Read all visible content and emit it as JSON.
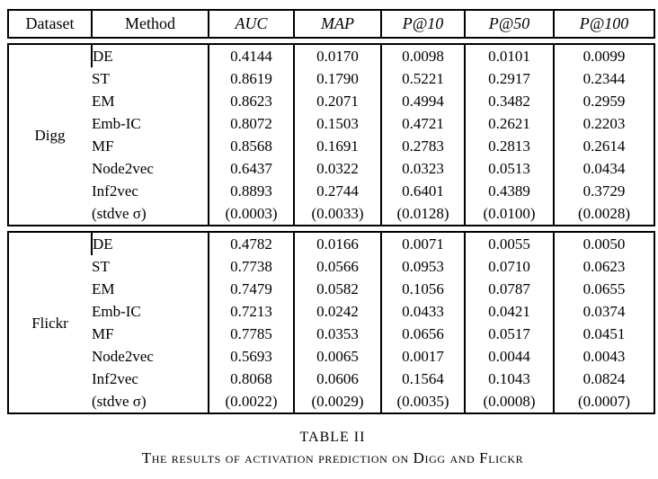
{
  "caption": {
    "label": "TABLE II",
    "title": "The results of activation prediction on Digg and Flickr"
  },
  "table": {
    "headers": [
      {
        "label": "Dataset",
        "italic": false,
        "align": "center"
      },
      {
        "label": "Method",
        "italic": false,
        "align": "left"
      },
      {
        "label": "AUC",
        "italic": true,
        "align": "center"
      },
      {
        "label": "MAP",
        "italic": true,
        "align": "center"
      },
      {
        "label": "P@10",
        "italic": true,
        "align": "center"
      },
      {
        "label": "P@50",
        "italic": true,
        "align": "center"
      },
      {
        "label": "P@100",
        "italic": true,
        "align": "center"
      }
    ],
    "groups": [
      {
        "dataset": "Digg",
        "rows": [
          {
            "method": "DE",
            "bold": false,
            "values": [
              "0.4144",
              "0.0170",
              "0.0098",
              "0.0101",
              "0.0099"
            ]
          },
          {
            "method": "ST",
            "bold": false,
            "values": [
              "0.8619",
              "0.1790",
              "0.5221",
              "0.2917",
              "0.2344"
            ]
          },
          {
            "method": "EM",
            "bold": false,
            "values": [
              "0.8623",
              "0.2071",
              "0.4994",
              "0.3482",
              "0.2959"
            ]
          },
          {
            "method": "Emb-IC",
            "bold": false,
            "values": [
              "0.8072",
              "0.1503",
              "0.4721",
              "0.2621",
              "0.2203"
            ]
          },
          {
            "method": "MF",
            "bold": false,
            "values": [
              "0.8568",
              "0.1691",
              "0.2783",
              "0.2813",
              "0.2614"
            ]
          },
          {
            "method": "Node2vec",
            "bold": false,
            "values": [
              "0.6437",
              "0.0322",
              "0.0323",
              "0.0513",
              "0.0434"
            ]
          },
          {
            "method": "Inf2vec",
            "bold": true,
            "values": [
              "0.8893",
              "0.2744",
              "0.6401",
              "0.4389",
              "0.3729"
            ]
          },
          {
            "method": "(stdve σ)",
            "bold": false,
            "values": [
              "(0.0003)",
              "(0.0033)",
              "(0.0128)",
              "(0.0100)",
              "(0.0028)"
            ]
          }
        ]
      },
      {
        "dataset": "Flickr",
        "rows": [
          {
            "method": "DE",
            "bold": false,
            "values": [
              "0.4782",
              "0.0166",
              "0.0071",
              "0.0055",
              "0.0050"
            ]
          },
          {
            "method": "ST",
            "bold": false,
            "values": [
              "0.7738",
              "0.0566",
              "0.0953",
              "0.0710",
              "0.0623"
            ]
          },
          {
            "method": "EM",
            "bold": false,
            "values": [
              "0.7479",
              "0.0582",
              "0.1056",
              "0.0787",
              "0.0655"
            ]
          },
          {
            "method": "Emb-IC",
            "bold": false,
            "values": [
              "0.7213",
              "0.0242",
              "0.0433",
              "0.0421",
              "0.0374"
            ]
          },
          {
            "method": "MF",
            "bold": false,
            "values": [
              "0.7785",
              "0.0353",
              "0.0656",
              "0.0517",
              "0.0451"
            ]
          },
          {
            "method": "Node2vec",
            "bold": false,
            "values": [
              "0.5693",
              "0.0065",
              "0.0017",
              "0.0044",
              "0.0043"
            ]
          },
          {
            "method": "Inf2vec",
            "bold": true,
            "values": [
              "0.8068",
              "0.0606",
              "0.1564",
              "0.1043",
              "0.0824"
            ]
          },
          {
            "method": "(stdve σ)",
            "bold": false,
            "values": [
              "(0.0022)",
              "(0.0029)",
              "(0.0035)",
              "(0.0008)",
              "(0.0007)"
            ]
          }
        ]
      }
    ]
  }
}
